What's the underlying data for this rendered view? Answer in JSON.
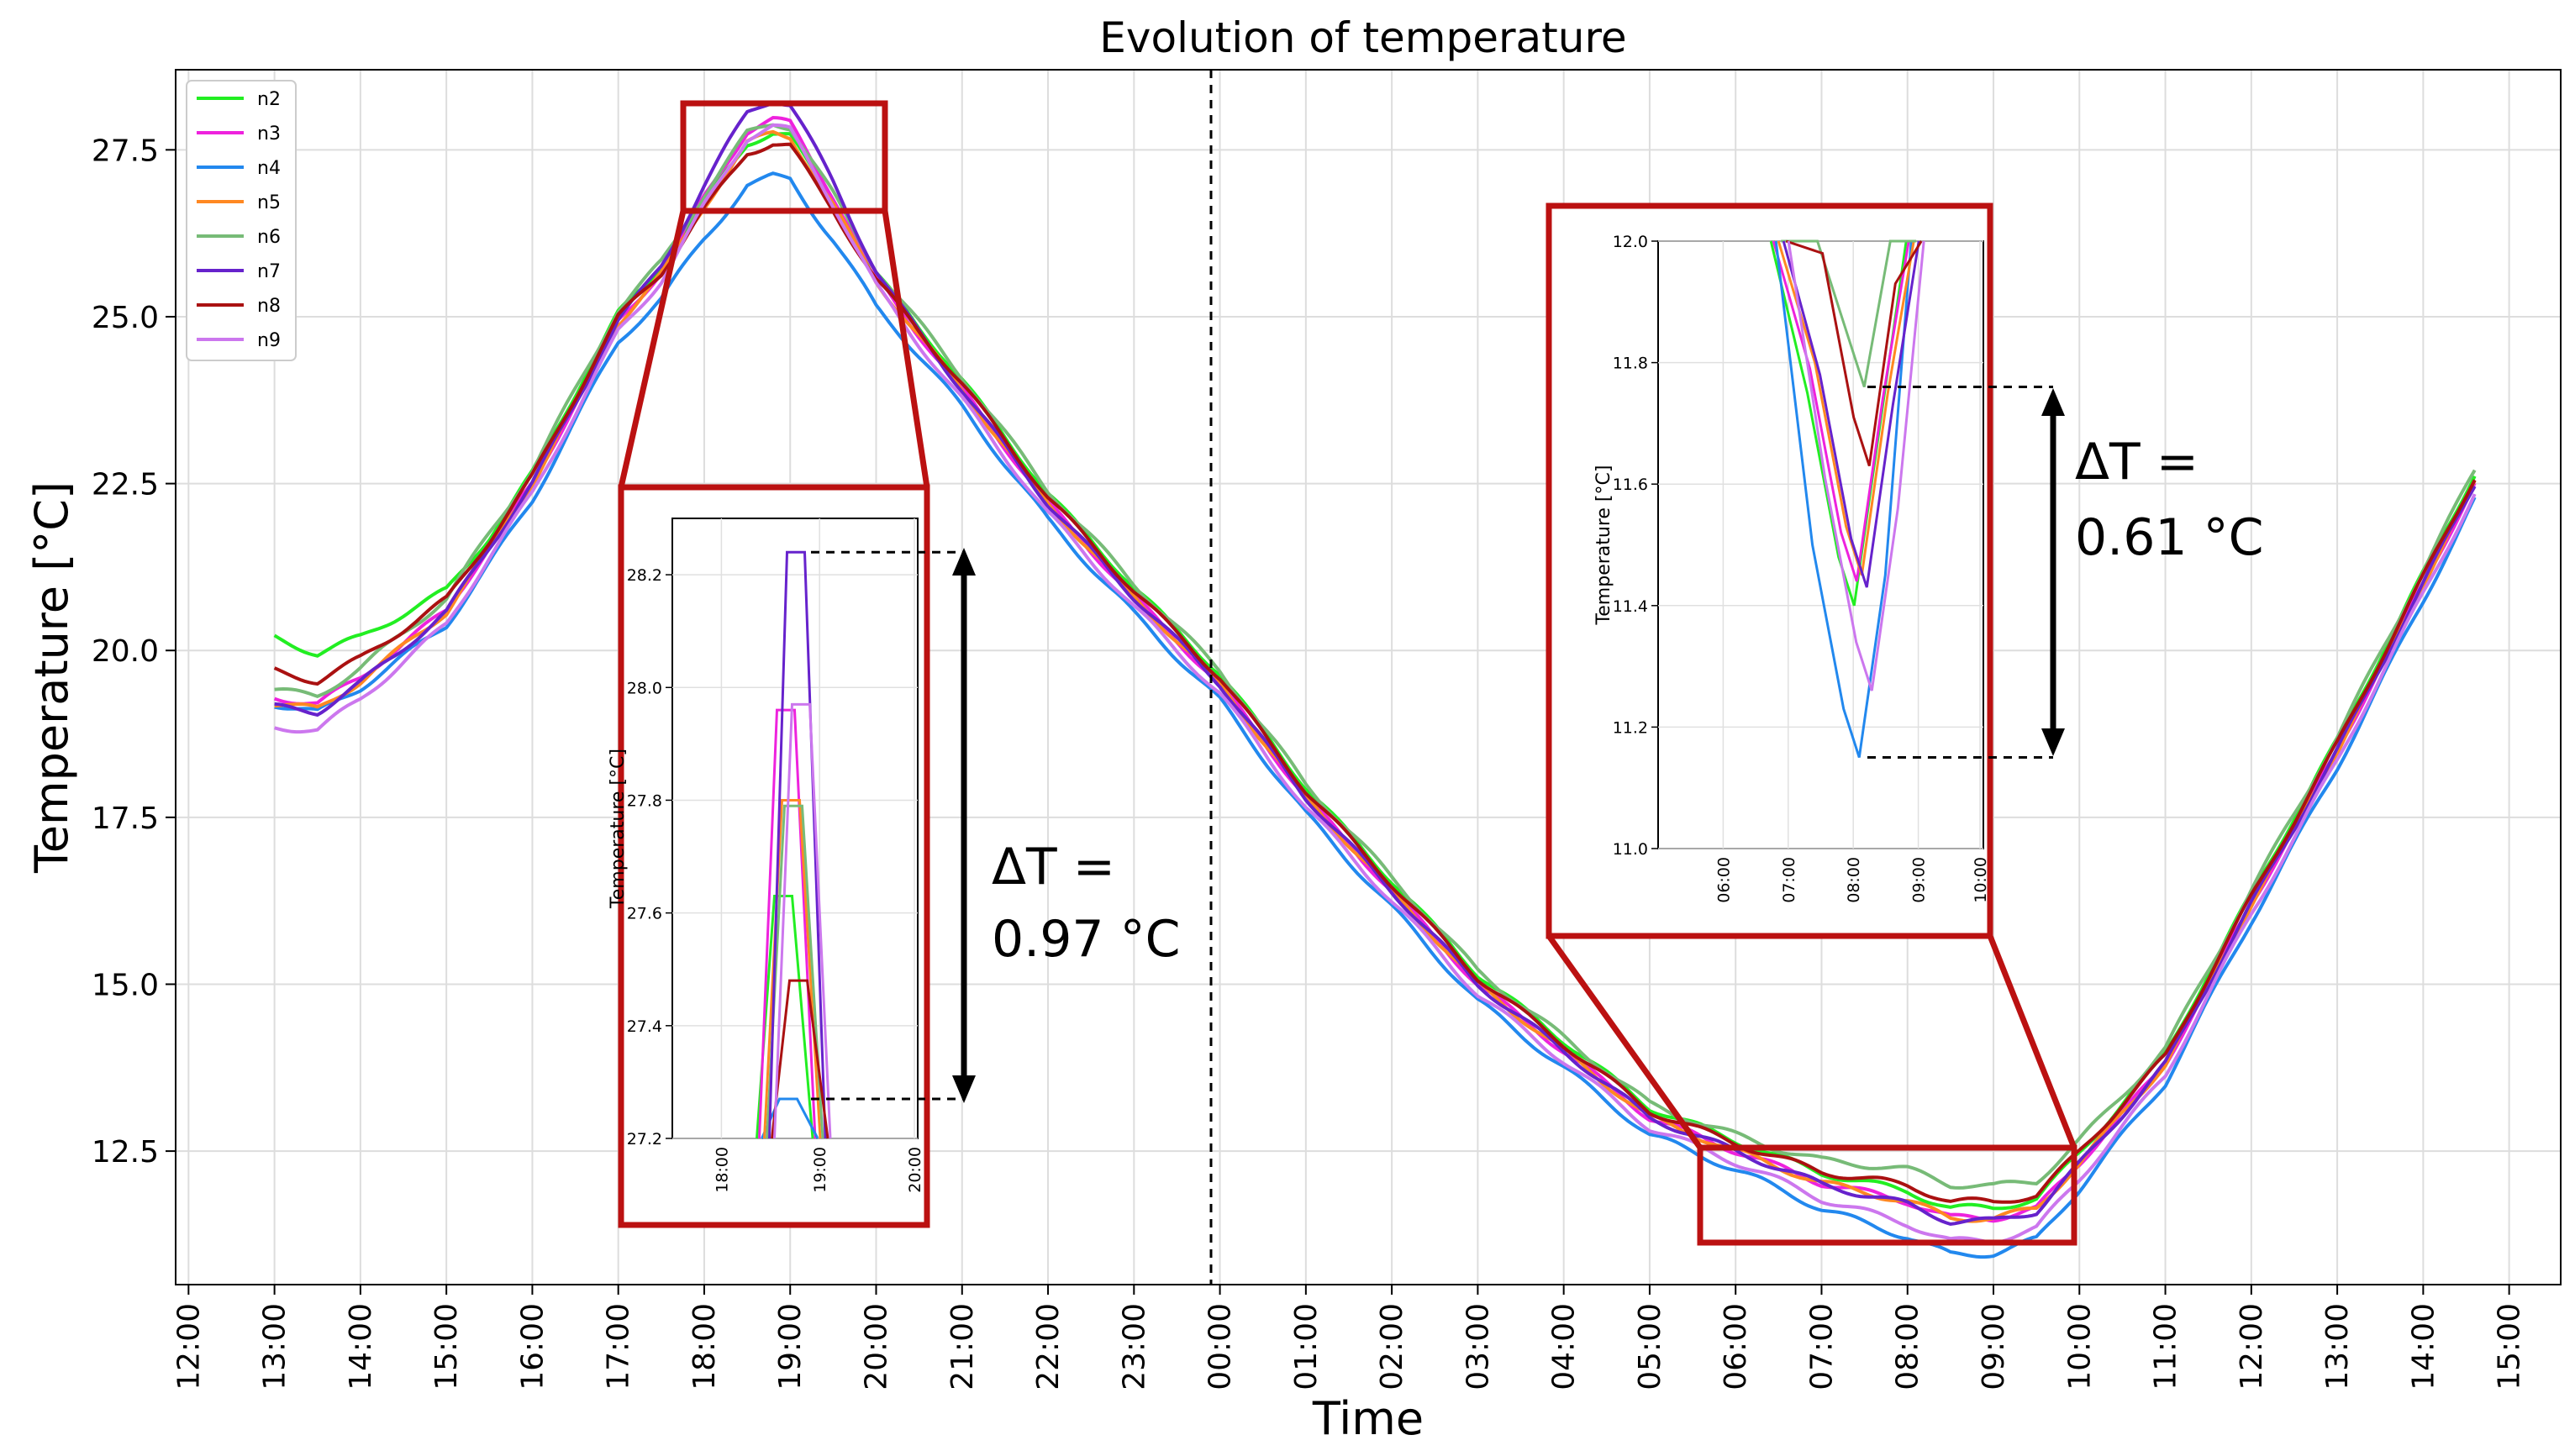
{
  "chart_data": {
    "type": "line",
    "title": "Evolution of temperature",
    "xlabel": "Time",
    "ylabel": "Temperature [°C]",
    "x_ticks": [
      "12:00",
      "13:00",
      "14:00",
      "15:00",
      "16:00",
      "17:00",
      "18:00",
      "19:00",
      "20:00",
      "21:00",
      "22:00",
      "23:00",
      "00:00",
      "01:00",
      "02:00",
      "03:00",
      "04:00",
      "05:00",
      "06:00",
      "07:00",
      "08:00",
      "09:00",
      "10:00",
      "11:00",
      "12:00",
      "13:00",
      "14:00",
      "15:00"
    ],
    "y_ticks": [
      "12.5",
      "15.0",
      "17.5",
      "20.0",
      "22.5",
      "25.0",
      "27.5"
    ],
    "ylim": [
      10.5,
      28.7
    ],
    "x_range_hours": [
      11.85,
      39.6
    ],
    "grid": true,
    "legend_location": "top-left",
    "midnight_marker_hour": 24,
    "base_curve": {
      "hours": [
        13.0,
        13.5,
        14.0,
        15.0,
        16.0,
        17.0,
        17.5,
        18.0,
        18.5,
        18.8,
        19.0,
        19.5,
        20.0,
        21.0,
        22.0,
        23.0,
        24.0,
        25.0,
        26.0,
        27.0,
        28.0,
        29.0,
        30.0,
        31.0,
        32.0,
        32.5,
        33.0,
        33.5,
        34.0,
        35.0,
        36.0,
        37.0,
        38.0,
        38.6
      ],
      "temps": [
        19.3,
        19.2,
        19.6,
        20.6,
        22.5,
        24.9,
        25.6,
        26.6,
        27.5,
        27.65,
        27.6,
        26.6,
        25.5,
        23.9,
        22.2,
        20.8,
        19.5,
        17.8,
        16.4,
        15.0,
        14.0,
        13.0,
        12.5,
        12.0,
        11.7,
        11.45,
        11.45,
        11.6,
        12.3,
        13.8,
        16.2,
        18.5,
        21.0,
        22.5
      ]
    },
    "series": [
      {
        "name": "n2",
        "color": "#22ee22",
        "offset": 0.15,
        "start_offset": 0.9,
        "peak_offset": -0.05,
        "trough_offset": 0.05
      },
      {
        "name": "n3",
        "color": "#ee22dd",
        "offset": 0.0,
        "start_offset": 0.0,
        "peak_offset": 0.3,
        "trough_offset": 0.05
      },
      {
        "name": "n4",
        "color": "#2288ee",
        "offset": -0.25,
        "start_offset": -0.1,
        "peak_offset": -0.3,
        "trough_offset": -0.25
      },
      {
        "name": "n5",
        "color": "#ff8822",
        "offset": 0.0,
        "start_offset": -0.1,
        "peak_offset": 0.1,
        "trough_offset": 0.05
      },
      {
        "name": "n6",
        "color": "#77bb77",
        "offset": 0.2,
        "start_offset": 0.1,
        "peak_offset": 0.05,
        "trough_offset": 0.35
      },
      {
        "name": "n7",
        "color": "#6622cc",
        "offset": 0.0,
        "start_offset": -0.15,
        "peak_offset": 0.6,
        "trough_offset": 0.0
      },
      {
        "name": "n8",
        "color": "#aa1111",
        "offset": 0.1,
        "start_offset": 0.4,
        "peak_offset": -0.15,
        "trough_offset": 0.2
      },
      {
        "name": "n9",
        "color": "#cc77ee",
        "offset": -0.15,
        "start_offset": -0.45,
        "peak_offset": 0.35,
        "trough_offset": -0.15
      }
    ],
    "insets": [
      {
        "name": "peak-zoom",
        "ylabel": "Temperature [°C]",
        "y_ticks": [
          "27.2",
          "27.4",
          "27.6",
          "27.8",
          "28.0",
          "28.2"
        ],
        "ylim": [
          27.2,
          28.3
        ],
        "x_ticks": [
          "18:00",
          "19:00",
          "20:00"
        ],
        "peak_values": {
          "n7": 28.24,
          "n9": 27.97,
          "n3": 27.96,
          "n5": 27.8,
          "n6": 27.79,
          "n2": 27.63,
          "n8": 27.48,
          "n4": 27.27
        },
        "delta_label": "ΔT = 0.97 °C"
      },
      {
        "name": "trough-zoom",
        "ylabel": "Temperature [°C]",
        "y_ticks": [
          "11.0",
          "11.2",
          "11.4",
          "11.6",
          "11.8",
          "12.0"
        ],
        "ylim": [
          11.0,
          12.0
        ],
        "x_ticks": [
          "06:00",
          "07:00",
          "08:00",
          "09:00",
          "10:00"
        ],
        "trough_values": {
          "n6": 11.76,
          "n8": 11.63,
          "n3": 11.44,
          "n5": 11.45,
          "n7": 11.43,
          "n2": 11.4,
          "n9": 11.26,
          "n4": 11.15
        },
        "delta_label": "ΔT = 0.61 °C"
      }
    ],
    "highlight_color": "#bb1111"
  },
  "annotations": {
    "left_delta_line1": "ΔT =",
    "left_delta_line2": "0.97 °C",
    "right_delta_line1": "ΔT =",
    "right_delta_line2": "0.61 °C"
  }
}
